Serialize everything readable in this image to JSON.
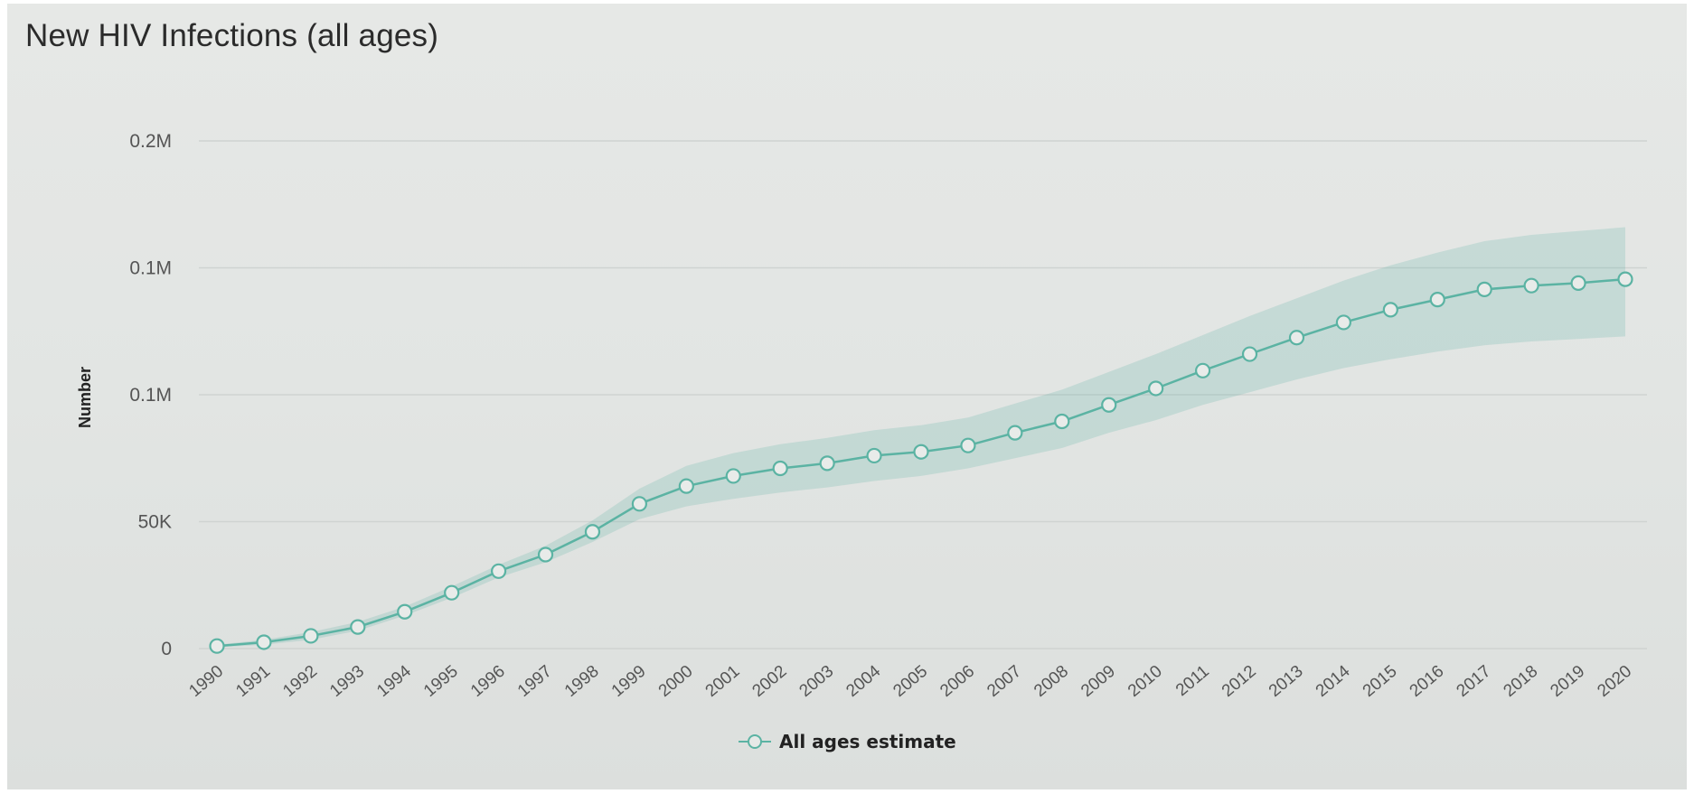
{
  "chart_data": {
    "type": "line",
    "title": "New HIV Infections (all ages)",
    "ylabel": "Number",
    "xlabel": "",
    "ylim": [
      0,
      200000
    ],
    "y_ticks": [
      {
        "value": 0,
        "label": "0"
      },
      {
        "value": 50000,
        "label": "50K"
      },
      {
        "value": 100000,
        "label": "0.1M"
      },
      {
        "value": 150000,
        "label": "0.1M"
      },
      {
        "value": 200000,
        "label": "0.2M"
      }
    ],
    "categories": [
      "1990",
      "1991",
      "1992",
      "1993",
      "1994",
      "1995",
      "1996",
      "1997",
      "1998",
      "1999",
      "2000",
      "2001",
      "2002",
      "2003",
      "2004",
      "2005",
      "2006",
      "2007",
      "2008",
      "2009",
      "2010",
      "2011",
      "2012",
      "2013",
      "2014",
      "2015",
      "2016",
      "2017",
      "2018",
      "2019",
      "2020"
    ],
    "series": [
      {
        "name": "All ages estimate",
        "color": "#5bb3a3",
        "values": [
          1000,
          2500,
          5000,
          8500,
          14500,
          22000,
          30500,
          37000,
          46000,
          57000,
          64000,
          68000,
          71000,
          73000,
          76000,
          77500,
          80000,
          85000,
          89500,
          96000,
          102500,
          109500,
          116000,
          122500,
          128500,
          133500,
          137500,
          141500,
          143000,
          144000,
          145500
        ],
        "lower": [
          500,
          1500,
          3500,
          7000,
          13000,
          20000,
          28000,
          34000,
          42000,
          51000,
          56000,
          59000,
          61500,
          63500,
          66000,
          68000,
          71000,
          75000,
          79000,
          85000,
          90000,
          96000,
          101000,
          106000,
          110500,
          114000,
          117000,
          119500,
          121000,
          122000,
          123000
        ],
        "upper": [
          1500,
          3500,
          6500,
          10500,
          16500,
          24500,
          33000,
          40500,
          50500,
          63000,
          72000,
          77000,
          80500,
          83000,
          86000,
          88000,
          91000,
          96500,
          102000,
          109000,
          116000,
          123500,
          131000,
          138000,
          145000,
          151000,
          156000,
          160500,
          163000,
          164500,
          166000
        ]
      }
    ],
    "legend_position": "bottom-center",
    "grid": true
  }
}
